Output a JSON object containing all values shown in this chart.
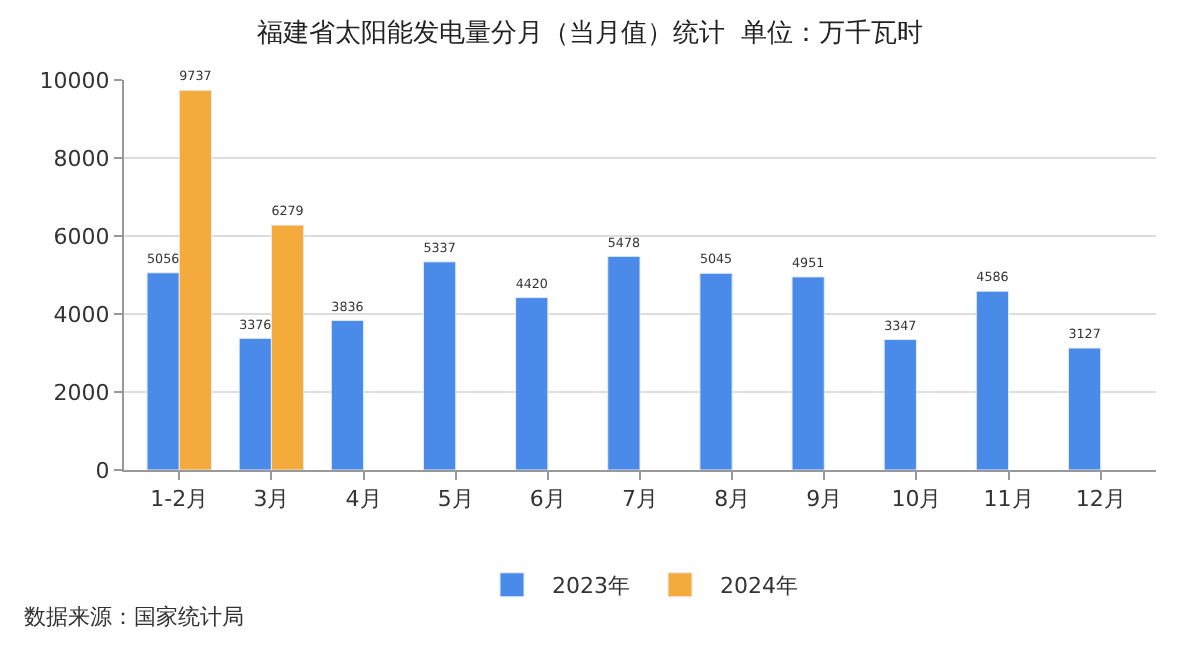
{
  "chart_data": {
    "type": "bar",
    "title": "福建省太阳能发电量分月（当月值）统计  单位：万千瓦时",
    "categories": [
      "1-2月",
      "3月",
      "4月",
      "5月",
      "6月",
      "7月",
      "8月",
      "9月",
      "10月",
      "11月",
      "12月"
    ],
    "series": [
      {
        "name": "2023年",
        "color": "#4a8ae8",
        "values": [
          5056,
          3376,
          3836,
          5337,
          4420,
          5478,
          5045,
          4951,
          3347,
          4586,
          3127
        ]
      },
      {
        "name": "2024年",
        "color": "#f5aa3c",
        "values": [
          9737,
          6279,
          null,
          null,
          null,
          null,
          null,
          null,
          null,
          null,
          null
        ]
      }
    ],
    "ylim": [
      0,
      10000
    ],
    "yticks": [
      0,
      2000,
      4000,
      6000,
      8000,
      10000
    ],
    "grid": "y",
    "legend": "bottom",
    "data_labels": true,
    "annotations": [
      "数据来源：国家统计局"
    ]
  }
}
